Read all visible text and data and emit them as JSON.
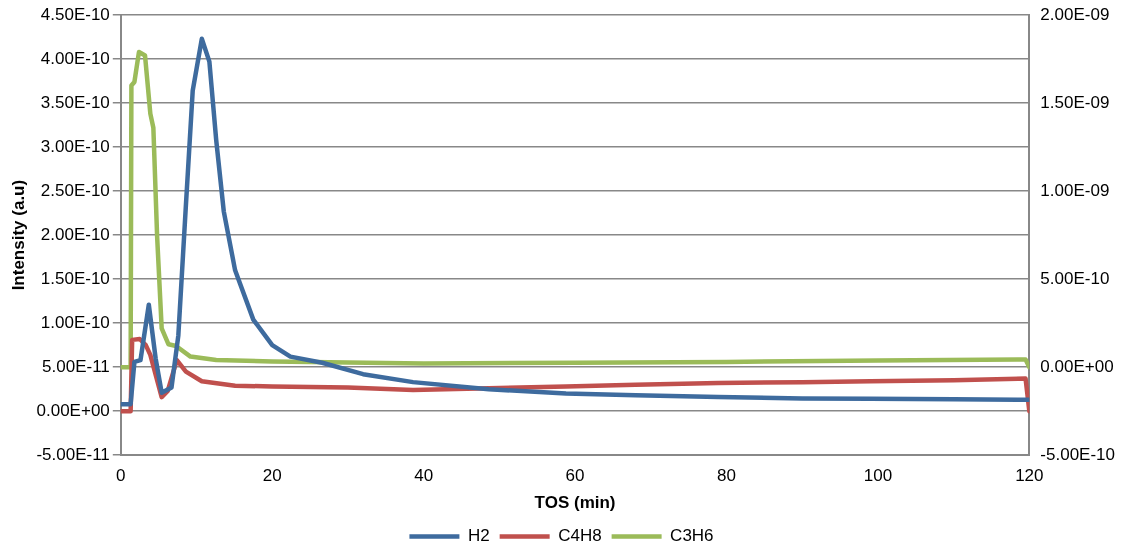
{
  "chart_data": {
    "type": "line",
    "xlabel": "TOS (min)",
    "ylabel": "Intensity (a.u)",
    "xlim": [
      0,
      120
    ],
    "xticks": [
      0,
      20,
      40,
      60,
      80,
      100,
      120
    ],
    "ylim": [
      -5e-11,
      4.5e-10
    ],
    "yticks": [
      {
        "value": -5e-11,
        "label": "-5.00E-11"
      },
      {
        "value": 0,
        "label": "0.00E+00"
      },
      {
        "value": 5e-11,
        "label": "5.00E-11"
      },
      {
        "value": 1e-10,
        "label": "1.00E-10"
      },
      {
        "value": 1.5e-10,
        "label": "1.50E-10"
      },
      {
        "value": 2e-10,
        "label": "2.00E-10"
      },
      {
        "value": 2.5e-10,
        "label": "2.50E-10"
      },
      {
        "value": 3e-10,
        "label": "3.00E-10"
      },
      {
        "value": 3.5e-10,
        "label": "3.50E-10"
      },
      {
        "value": 4e-10,
        "label": "4.00E-10"
      },
      {
        "value": 4.5e-10,
        "label": "4.50E-10"
      }
    ],
    "y2lim": [
      -5e-10,
      2e-09
    ],
    "y2ticks": [
      {
        "value": -5e-10,
        "label": "-5.00E-10"
      },
      {
        "value": 0,
        "label": "0.00E+00"
      },
      {
        "value": 5e-10,
        "label": "5.00E-10"
      },
      {
        "value": 1e-09,
        "label": "1.00E-09"
      },
      {
        "value": 1.5e-09,
        "label": "1.50E-09"
      },
      {
        "value": 2e-09,
        "label": "2.00E-09"
      }
    ],
    "grid": "y",
    "legend": "bottom",
    "marker": "none",
    "line_style": "solid",
    "series": [
      {
        "name": "H2",
        "color": "#3e6b9e",
        "x": [
          0,
          1.3,
          1.8,
          2.6,
          3.7,
          4.6,
          5.4,
          6.7,
          7.6,
          8.6,
          9.5,
          10.7,
          11.7,
          12.6,
          13.6,
          15.1,
          17.5,
          20,
          22.4,
          26.6,
          32,
          38.6,
          48.6,
          58.8,
          68,
          78.9,
          90,
          99,
          110,
          120
        ],
        "values": [
          8e-12,
          8e-12,
          5.6e-11,
          5.8e-11,
          1.21e-10,
          6e-11,
          2.1e-11,
          2.7e-11,
          8.6e-11,
          2.34e-10,
          3.64e-10,
          4.23e-10,
          3.97e-10,
          3.08e-10,
          2.27e-10,
          1.6e-10,
          1.04e-10,
          7.5e-11,
          6.2e-11,
          5.5e-11,
          4.2e-11,
          3.3e-11,
          2.5e-11,
          2e-11,
          1.8e-11,
          1.6e-11,
          1.45e-11,
          1.4e-11,
          1.35e-11,
          1.3e-11
        ]
      },
      {
        "name": "C4H8",
        "color": "#c0504d",
        "x": [
          0,
          1.3,
          1.5,
          2.5,
          3.3,
          3.9,
          5.4,
          6.2,
          7.4,
          8.6,
          10.7,
          15.1,
          20,
          30,
          38.6,
          48.6,
          58.8,
          68,
          78.9,
          90,
          99,
          110,
          119.5,
          120
        ],
        "values": [
          0,
          0,
          8.1e-11,
          8.2e-11,
          7.5e-11,
          6.4e-11,
          1.6e-11,
          2.3e-11,
          5.8e-11,
          4.5e-11,
          3.4e-11,
          2.9e-11,
          2.8e-11,
          2.7e-11,
          2.4e-11,
          2.6e-11,
          2.8e-11,
          3e-11,
          3.2e-11,
          3.3e-11,
          3.4e-11,
          3.5e-11,
          3.7e-11,
          0
        ]
      },
      {
        "name": "C3H6",
        "color": "#9bbb59",
        "axis": "y2",
        "x": [
          0,
          1.3,
          1.4,
          1.8,
          2.4,
          3.2,
          3.9,
          4.3,
          4.8,
          5.4,
          6.3,
          7.3,
          9.2,
          12.6,
          20,
          40,
          60,
          80,
          100,
          119.5,
          120
        ],
        "values": [
          0,
          0,
          1.6e-09,
          1.62e-09,
          1.79e-09,
          1.77e-09,
          1.44e-09,
          1.36e-09,
          7.4e-10,
          2.2e-10,
          1.3e-10,
          1.2e-10,
          6e-11,
          4.1e-11,
          3.2e-11,
          2.1e-11,
          2.5e-11,
          3e-11,
          3.8e-11,
          4.4e-11,
          0
        ]
      }
    ]
  }
}
